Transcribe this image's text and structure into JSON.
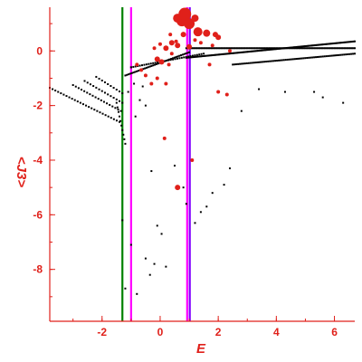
{
  "chart_data": {
    "type": "scatter",
    "xlabel": "E",
    "ylabel": "<J3>",
    "xlim": [
      -3.8,
      6.7
    ],
    "ylim": [
      -9.9,
      1.6
    ],
    "grid": false,
    "x_ticks": [
      -2,
      0,
      2,
      4,
      6
    ],
    "y_ticks": [
      0,
      -2,
      -4,
      -6,
      -8
    ],
    "colors": {
      "axis": "#e0201a",
      "black_points": "#000000",
      "red_points": "#e0201a"
    },
    "vertical_lines": [
      {
        "x": -1.3,
        "color": "#008000"
      },
      {
        "x": -1.0,
        "color": "#ff00ff"
      },
      {
        "x": 0.93,
        "color": "#ff00ff"
      },
      {
        "x": 1.02,
        "color": "#8000ff"
      }
    ],
    "series": [
      {
        "marker_color": "#000000",
        "families": [
          {
            "x_start": -3.8,
            "x_end": -1.4,
            "y_start": -1.35,
            "y_end": -2.6,
            "n": 26
          },
          {
            "x_start": -3.0,
            "x_end": -1.35,
            "y_start": -1.25,
            "y_end": -2.2,
            "n": 18
          },
          {
            "x_start": -2.6,
            "x_end": -1.3,
            "y_start": -1.1,
            "y_end": -1.9,
            "n": 14
          },
          {
            "x_start": -2.2,
            "x_end": -1.3,
            "y_start": -0.95,
            "y_end": -1.55,
            "n": 10
          },
          {
            "x_start": -1.5,
            "x_end": -1.2,
            "y_start": -1.9,
            "y_end": -3.4,
            "n": 10
          },
          {
            "x_start": -1.2,
            "x_end": 1.0,
            "y_start": -0.9,
            "y_end": -0.05,
            "n": 40
          },
          {
            "x_start": -1.0,
            "x_end": 1.5,
            "y_start": -0.6,
            "y_end": -0.1,
            "n": 34
          },
          {
            "x_start": 0.9,
            "x_end": 6.7,
            "y_start": -0.25,
            "y_end": 0.35,
            "n": 140
          },
          {
            "x_start": 0.9,
            "x_end": 6.7,
            "y_start": 0.1,
            "y_end": 0.1,
            "n": 120
          },
          {
            "x_start": 2.5,
            "x_end": 6.7,
            "y_start": -0.5,
            "y_end": -0.1,
            "n": 70
          }
        ],
        "points": [
          [
            -1.3,
            -6.2
          ],
          [
            -1.2,
            -8.7
          ],
          [
            -1.0,
            -7.1
          ],
          [
            -0.8,
            -8.9
          ],
          [
            -0.5,
            -7.6
          ],
          [
            -0.35,
            -8.2
          ],
          [
            -0.2,
            -7.8
          ],
          [
            -0.1,
            -6.4
          ],
          [
            0.05,
            -6.7
          ],
          [
            0.2,
            -7.9
          ],
          [
            0.5,
            -4.2
          ],
          [
            0.8,
            -5.0
          ],
          [
            0.9,
            -5.6
          ],
          [
            1.2,
            -6.3
          ],
          [
            1.4,
            -5.9
          ],
          [
            1.6,
            -5.7
          ],
          [
            1.8,
            -5.2
          ],
          [
            2.2,
            -4.9
          ],
          [
            2.4,
            -4.3
          ],
          [
            -0.3,
            -4.4
          ],
          [
            -1.0,
            -0.6
          ],
          [
            -0.9,
            -1.2
          ],
          [
            -0.7,
            -1.8
          ],
          [
            -0.5,
            -2.0
          ],
          [
            2.8,
            -2.2
          ],
          [
            3.4,
            -1.4
          ],
          [
            4.3,
            -1.5
          ],
          [
            5.3,
            -1.5
          ],
          [
            5.6,
            -1.7
          ],
          [
            6.3,
            -1.9
          ],
          [
            -0.6,
            -1.3
          ],
          [
            -1.1,
            -1.5
          ],
          [
            -0.85,
            -2.4
          ]
        ]
      },
      {
        "marker_color": "#e0201a",
        "points": [
          [
            0.6,
            1.2,
            5
          ],
          [
            0.75,
            1.1,
            6
          ],
          [
            0.85,
            1.35,
            7
          ],
          [
            1.0,
            1.0,
            6
          ],
          [
            1.2,
            1.2,
            4
          ],
          [
            1.3,
            0.7,
            5
          ],
          [
            1.6,
            0.65,
            4
          ],
          [
            1.9,
            0.6,
            3
          ],
          [
            2.0,
            0.5,
            3
          ],
          [
            0.8,
            0.6,
            3
          ],
          [
            0.4,
            0.3,
            3
          ],
          [
            0.2,
            0.1,
            3
          ],
          [
            0.55,
            0.35,
            2
          ],
          [
            0.05,
            -0.4,
            3
          ],
          [
            -0.1,
            -0.3,
            3
          ],
          [
            -0.3,
            -1.2,
            2
          ],
          [
            -0.1,
            -1.0,
            2
          ],
          [
            -0.5,
            -0.9,
            2
          ],
          [
            -0.65,
            -0.7,
            2
          ],
          [
            -0.8,
            -0.5,
            2
          ],
          [
            0.3,
            -0.5,
            2
          ],
          [
            0.2,
            -1.2,
            2
          ],
          [
            0.4,
            -0.1,
            2
          ],
          [
            0.6,
            0.2,
            3
          ],
          [
            1.4,
            0.3,
            2
          ],
          [
            1.7,
            -0.5,
            2
          ],
          [
            2.0,
            -1.5,
            2
          ],
          [
            2.3,
            -1.6,
            2
          ],
          [
            0.15,
            -3.2,
            2
          ],
          [
            1.1,
            -4.0,
            2
          ],
          [
            0.6,
            -5.0,
            3
          ],
          [
            1.8,
            0.2,
            2
          ],
          [
            2.4,
            0.0,
            2
          ],
          [
            0.0,
            0.25,
            2
          ],
          [
            -0.2,
            0.1,
            2
          ],
          [
            1.0,
            0.15,
            3
          ],
          [
            1.2,
            0.4,
            2
          ],
          [
            0.35,
            0.6,
            2
          ]
        ]
      }
    ]
  }
}
